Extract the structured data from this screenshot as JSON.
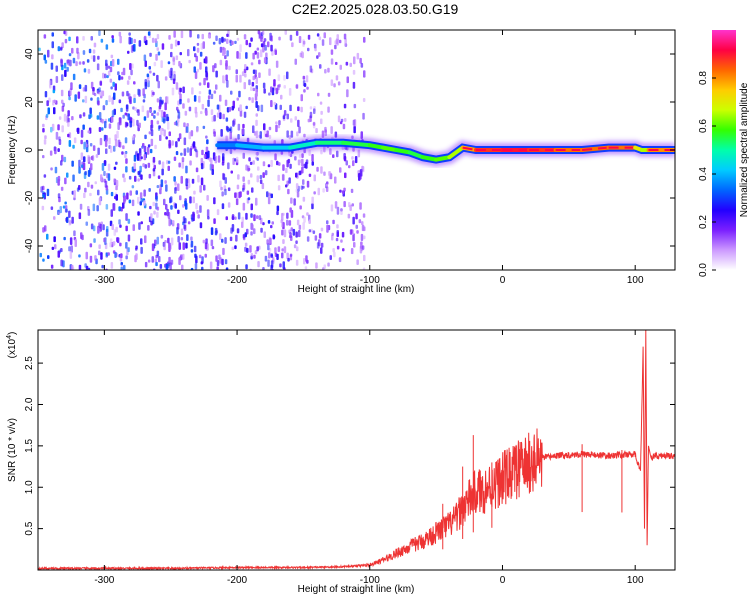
{
  "title": "C2E2.2025.028.03.50.G19",
  "chart_data": [
    {
      "type": "heatmap",
      "xlabel": "Height of straight line (km)",
      "ylabel": "Frequency (Hz)",
      "xlim": [
        -350,
        130
      ],
      "ylim": [
        -50,
        50
      ],
      "xticks": [
        -300,
        -200,
        -100,
        0,
        100
      ],
      "yticks": [
        -40,
        -20,
        0,
        20,
        40
      ],
      "colorbar": {
        "label": "Normalized spectral amplitude",
        "range": [
          0,
          1
        ],
        "ticks": [
          "0.0",
          "0.2",
          "0.4",
          "0.6",
          "0.8"
        ],
        "colors": [
          "#ffffff",
          "#cc99ff",
          "#7a1fff",
          "#2200ff",
          "#0066ff",
          "#00ccff",
          "#00ffaa",
          "#33ff00",
          "#ccff00",
          "#ffcc00",
          "#ff6600",
          "#ff0044",
          "#ff33cc"
        ]
      },
      "noise_region": {
        "x": [
          -350,
          -105
        ],
        "y": [
          -50,
          50
        ]
      },
      "ridge": {
        "x": [
          -215,
          -200,
          -180,
          -160,
          -140,
          -120,
          -100,
          -90,
          -80,
          -70,
          -60,
          -50,
          -40,
          -30,
          -20,
          0,
          20,
          40,
          60,
          80,
          100,
          105,
          110,
          130
        ],
        "freq": [
          2,
          2,
          1,
          1,
          3,
          3,
          2,
          1,
          0,
          -1,
          -3,
          -4,
          -3,
          1,
          0,
          0,
          0,
          0,
          0,
          1,
          1,
          0,
          0,
          0
        ],
        "amplitude": [
          0.3,
          0.4,
          0.4,
          0.45,
          0.5,
          0.55,
          0.55,
          0.6,
          0.6,
          0.55,
          0.55,
          0.6,
          0.6,
          0.7,
          0.85,
          0.9,
          0.9,
          0.85,
          0.8,
          0.85,
          0.8,
          0.6,
          0.7,
          0.9
        ]
      }
    },
    {
      "type": "line",
      "xlabel": "Height of straight line (km)",
      "ylabel": "SNR (10 * v/v)",
      "yscale_label": "(x10",
      "yscale_exp": "4",
      "xlim": [
        -350,
        130
      ],
      "ylim": [
        0,
        2.9
      ],
      "xticks": [
        -300,
        -200,
        -100,
        0,
        100
      ],
      "yticks": [
        "0.5",
        "1.0",
        "1.5",
        "2.0",
        "2.5"
      ],
      "series": [
        {
          "color": "#ee3333",
          "x": [
            -350,
            -300,
            -250,
            -200,
            -150,
            -120,
            -100,
            -90,
            -80,
            -70,
            -60,
            -50,
            -40,
            -35,
            -30,
            -25,
            -20,
            -15,
            -10,
            -5,
            0,
            10,
            20,
            30,
            40,
            60,
            80,
            100,
            104,
            106,
            107,
            108,
            109,
            110,
            112,
            115,
            120,
            130
          ],
          "y": [
            0.02,
            0.02,
            0.02,
            0.03,
            0.03,
            0.04,
            0.06,
            0.12,
            0.2,
            0.28,
            0.35,
            0.45,
            0.55,
            0.62,
            0.75,
            0.85,
            0.95,
            0.95,
            1.0,
            1.05,
            1.1,
            1.2,
            1.28,
            1.35,
            1.38,
            1.4,
            1.38,
            1.4,
            1.2,
            2.7,
            0.5,
            2.9,
            0.3,
            1.5,
            1.35,
            1.38,
            1.38,
            1.38
          ],
          "spikes": [
            {
              "x": -22,
              "y": 1.63
            },
            {
              "x": -30,
              "y": 1.25
            },
            {
              "x": -45,
              "y": 0.8
            },
            {
              "x": -8,
              "y": 1.3
            },
            {
              "x": 60,
              "y": 1.52
            },
            {
              "x": 90,
              "y": 1.45
            }
          ]
        }
      ]
    }
  ]
}
